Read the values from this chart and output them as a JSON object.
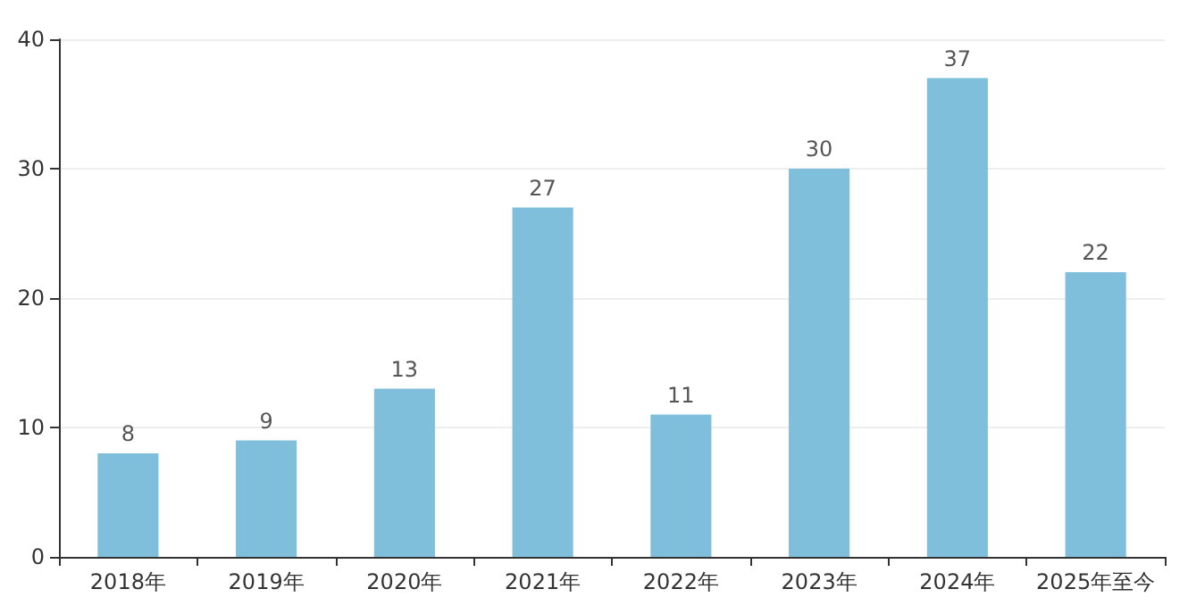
{
  "chart_data": {
    "type": "bar",
    "categories": [
      "2018年",
      "2019年",
      "2020年",
      "2021年",
      "2022年",
      "2023年",
      "2024年",
      "2025年至今"
    ],
    "values": [
      8,
      9,
      13,
      27,
      11,
      30,
      37,
      22
    ],
    "color": "#7fbfdb",
    "ylim": [
      0,
      40
    ],
    "yticks": [
      0,
      10,
      20,
      30,
      40
    ],
    "grid": "y",
    "data_labels": true
  }
}
